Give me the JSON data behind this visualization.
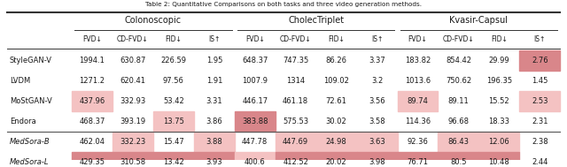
{
  "title": "Table 2: Quantitative Comparisons on both tasks and three video generation methods.",
  "col_groups": [
    {
      "name": "Colonoscopic",
      "cols": [
        "FVD↓",
        "CD-FVD↓",
        "FID↓",
        "IS↑"
      ]
    },
    {
      "name": "CholecTriplet",
      "cols": [
        "FVD↓",
        "CD-FVD↓",
        "FID↓",
        "IS↑"
      ]
    },
    {
      "name": "Kvasir-Capsul",
      "cols": [
        "FVD↓",
        "CD-FVD↓",
        "FID↓",
        "IS↑"
      ]
    }
  ],
  "rows": [
    {
      "name": "StyleGAN-V",
      "values": [
        1994.1,
        630.87,
        226.59,
        1.95,
        648.37,
        747.35,
        86.26,
        3.37,
        183.82,
        854.42,
        29.99,
        2.76
      ],
      "separator": false
    },
    {
      "name": "LVDM",
      "values": [
        1271.2,
        620.41,
        97.56,
        1.91,
        1007.9,
        1314.0,
        109.02,
        3.2,
        1013.6,
        750.62,
        196.35,
        1.45
      ],
      "separator": false
    },
    {
      "name": "MoStGAN-V",
      "values": [
        437.96,
        332.93,
        53.42,
        3.31,
        446.17,
        461.18,
        72.61,
        3.56,
        89.74,
        89.11,
        15.52,
        2.53
      ],
      "separator": false
    },
    {
      "name": "Endora",
      "values": [
        468.37,
        393.19,
        13.75,
        3.86,
        383.88,
        575.53,
        30.02,
        3.58,
        114.36,
        96.68,
        18.33,
        2.31
      ],
      "separator": false
    },
    {
      "name": "MedSora-B",
      "values": [
        462.04,
        332.23,
        15.47,
        3.88,
        447.78,
        447.69,
        24.98,
        3.63,
        92.36,
        86.43,
        12.06,
        2.38
      ],
      "separator": true
    },
    {
      "name": "MedSora-L",
      "values": [
        429.35,
        310.58,
        13.42,
        3.93,
        400.6,
        412.52,
        20.02,
        3.98,
        76.71,
        80.5,
        10.48,
        2.44
      ],
      "separator": true
    }
  ],
  "colors": {
    "highlight_light": "#f4c2c2",
    "highlight_dark": "#d9868a",
    "separator_line": "#555555",
    "top_line": "#333333",
    "text": "#1a1a1a"
  }
}
